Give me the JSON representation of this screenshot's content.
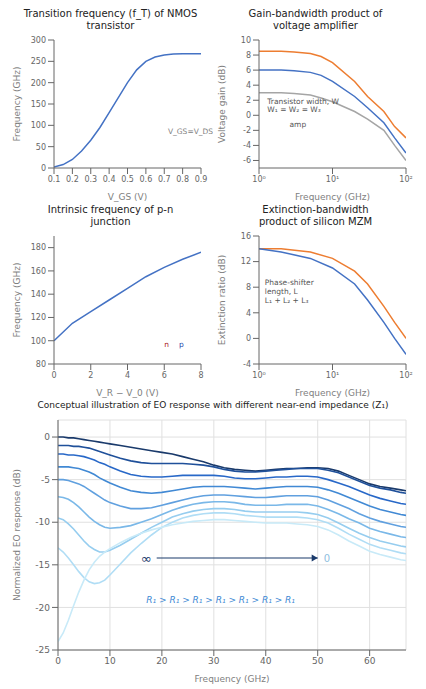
{
  "chart_data": [
    {
      "type": "line",
      "title": "Transition frequency (f_T) of NMOS\ntransistor",
      "xlabel": "V_GS (V)",
      "ylabel": "Frequency (GHz)",
      "x": [
        0.1,
        0.15,
        0.2,
        0.25,
        0.3,
        0.35,
        0.4,
        0.45,
        0.5,
        0.55,
        0.6,
        0.65,
        0.7,
        0.75,
        0.8,
        0.85,
        0.9
      ],
      "series": [
        {
          "color": "#4472c4",
          "values": [
            2,
            8,
            20,
            40,
            65,
            95,
            130,
            165,
            200,
            230,
            250,
            260,
            265,
            267,
            268,
            268,
            268
          ]
        }
      ],
      "xlim": [
        0.1,
        0.9
      ],
      "ylim": [
        0,
        300
      ],
      "xticks": [
        0.1,
        0.2,
        0.3,
        0.4,
        0.5,
        0.6,
        0.7,
        0.8,
        0.9
      ],
      "yticks": [
        0,
        50,
        100,
        150,
        200,
        250,
        300
      ],
      "grid": false,
      "annotations": [
        {
          "text": "V_GS=V_DS",
          "x": 0.72,
          "y": 80,
          "color": "gray"
        }
      ]
    },
    {
      "type": "line",
      "title": "Gain-bandwidth product of\nvoltage amplifier",
      "xlabel": "Frequency (GHz)",
      "ylabel": "Voltage gain (dB)",
      "x": [
        1,
        2,
        3,
        5,
        7,
        10,
        20,
        30,
        50,
        70,
        100
      ],
      "series": [
        {
          "color": "#ed7d31",
          "values": [
            8.5,
            8.5,
            8.4,
            8.2,
            7.8,
            7.0,
            4.5,
            2.5,
            0.5,
            -1.5,
            -3.0
          ]
        },
        {
          "color": "#4472c4",
          "values": [
            6.0,
            6.0,
            5.9,
            5.7,
            5.3,
            4.5,
            2.5,
            1.0,
            -1.0,
            -3.0,
            -5.0
          ]
        },
        {
          "color": "#a5a5a5",
          "values": [
            3.0,
            3.0,
            2.9,
            2.7,
            2.3,
            1.8,
            0.5,
            -0.5,
            -2.0,
            -4.0,
            -6.0
          ]
        }
      ],
      "log": "x",
      "xlim": [
        1,
        100
      ],
      "ylim": [
        -7,
        10
      ],
      "xticks": [
        {
          "value": 1,
          "label": "10⁰"
        },
        {
          "value": 10,
          "label": "10¹"
        },
        {
          "value": 100,
          "label": "10²"
        }
      ],
      "yticks": [
        -6,
        -4,
        -2,
        0,
        2,
        4,
        6,
        8,
        10
      ],
      "grid": false,
      "annotations": [
        {
          "text": "Transistor width, W",
          "x": 1.3,
          "y": 1.5,
          "color": "#555555"
        },
        {
          "text": "W₁ = W₂ = W₃",
          "x": 1.3,
          "y": 0.5,
          "color": "#555555"
        },
        {
          "text": "amp",
          "x": 2.6,
          "y": -1.5,
          "color": "#555555"
        }
      ]
    },
    {
      "type": "line",
      "title": "Intrinsic frequency of p-n\njunction",
      "xlabel": "V_R − V_0 (V)",
      "ylabel": "Frequency (GHz)",
      "x": [
        0,
        1,
        2,
        3,
        4,
        5,
        6,
        7,
        8
      ],
      "series": [
        {
          "color": "#4472c4",
          "values": [
            100,
            115,
            125,
            135,
            145,
            155,
            163,
            170,
            176
          ]
        }
      ],
      "xlim": [
        0,
        8
      ],
      "ylim": [
        80,
        190
      ],
      "xticks": [
        0,
        2,
        4,
        6,
        8
      ],
      "yticks": [
        80,
        100,
        120,
        140,
        160,
        180
      ],
      "grid": false,
      "annotations": [
        {
          "text": "n",
          "x": 6,
          "y": 95,
          "color": "#aa2222"
        },
        {
          "text": "p",
          "x": 6.8,
          "y": 95,
          "color": "#2244aa"
        }
      ]
    },
    {
      "type": "line",
      "title": "Extinction-bandwidth\nproduct of silicon MZM",
      "xlabel": "Frequency (GHz)",
      "ylabel": "Extinction ratio (dB)",
      "x": [
        1,
        2,
        5,
        10,
        20,
        30,
        50,
        70,
        100
      ],
      "series": [
        {
          "color": "#ed7d31",
          "values": [
            14,
            14,
            13.5,
            12.5,
            10.5,
            8.5,
            5.0,
            2.5,
            0.0
          ]
        },
        {
          "color": "#4472c4",
          "values": [
            14,
            13.5,
            12.5,
            11.0,
            8.5,
            6.0,
            2.5,
            0.0,
            -2.5
          ]
        }
      ],
      "log": "x",
      "xlim": [
        1,
        100
      ],
      "ylim": [
        -4,
        16
      ],
      "xticks": [
        {
          "value": 1,
          "label": "10⁰"
        },
        {
          "value": 10,
          "label": "10¹"
        },
        {
          "value": 100,
          "label": "10²"
        }
      ],
      "yticks": [
        -4,
        0,
        4,
        8,
        12,
        16
      ],
      "grid": false,
      "annotations": [
        {
          "text": "Phase-shifter\nlength, L",
          "x": 1.2,
          "y": 7.0,
          "color": "#555555"
        },
        {
          "text": "L₁ + L₂ + L₃",
          "x": 1.2,
          "y": 5.5,
          "color": "#555555"
        }
      ]
    },
    {
      "type": "line",
      "title": "Conceptual illustration of EO response with different near-end impedance (Z₁)",
      "xlabel": "Frequency (GHz)",
      "ylabel": "Normalized EO response (dB)",
      "x": [
        0,
        1,
        2,
        3,
        4,
        5,
        6,
        7,
        8,
        9,
        10,
        12,
        14,
        16,
        18,
        20,
        22,
        24,
        26,
        28,
        30,
        32,
        34,
        36,
        38,
        40,
        42,
        44,
        46,
        48,
        50,
        52,
        54,
        56,
        58,
        60,
        62,
        64,
        66,
        67
      ],
      "series": [
        {
          "color": "#1a3a6b",
          "values": [
            0.0,
            0.0,
            -0.1,
            -0.1,
            -0.2,
            -0.3,
            -0.4,
            -0.5,
            -0.6,
            -0.7,
            -0.8,
            -1.0,
            -1.2,
            -1.4,
            -1.6,
            -1.8,
            -2.0,
            -2.3,
            -2.6,
            -2.9,
            -3.3,
            -3.6,
            -3.8,
            -3.9,
            -4.0,
            -3.9,
            -3.8,
            -3.7,
            -3.7,
            -3.6,
            -3.6,
            -3.7,
            -4.0,
            -4.5,
            -5.0,
            -5.5,
            -5.8,
            -6.0,
            -6.2,
            -6.3
          ]
        },
        {
          "color": "#1f509a",
          "values": [
            -1.0,
            -1.0,
            -1.0,
            -1.1,
            -1.1,
            -1.2,
            -1.3,
            -1.5,
            -1.7,
            -1.9,
            -2.1,
            -2.5,
            -2.8,
            -3.0,
            -3.1,
            -3.1,
            -3.1,
            -3.1,
            -3.2,
            -3.3,
            -3.5,
            -3.8,
            -4.0,
            -4.1,
            -4.1,
            -4.0,
            -3.9,
            -3.8,
            -3.7,
            -3.7,
            -3.7,
            -3.9,
            -4.2,
            -4.7,
            -5.2,
            -5.7,
            -6.0,
            -6.2,
            -6.5,
            -6.6
          ]
        },
        {
          "color": "#2868c8",
          "values": [
            -2.0,
            -2.0,
            -2.1,
            -2.1,
            -2.2,
            -2.3,
            -2.5,
            -2.7,
            -3.0,
            -3.2,
            -3.5,
            -4.0,
            -4.4,
            -4.6,
            -4.7,
            -4.7,
            -4.6,
            -4.5,
            -4.5,
            -4.5,
            -4.5,
            -4.6,
            -4.8,
            -4.9,
            -4.9,
            -4.8,
            -4.7,
            -4.7,
            -4.6,
            -4.6,
            -4.7,
            -5.0,
            -5.4,
            -5.8,
            -6.3,
            -6.8,
            -7.2,
            -7.5,
            -7.8,
            -7.9
          ]
        },
        {
          "color": "#4189d4",
          "values": [
            -3.5,
            -3.5,
            -3.5,
            -3.6,
            -3.7,
            -3.9,
            -4.1,
            -4.4,
            -4.8,
            -5.1,
            -5.4,
            -5.9,
            -6.3,
            -6.5,
            -6.6,
            -6.5,
            -6.3,
            -6.1,
            -5.9,
            -5.8,
            -5.8,
            -5.8,
            -5.9,
            -6.0,
            -6.1,
            -6.0,
            -5.9,
            -5.8,
            -5.8,
            -5.8,
            -5.9,
            -6.2,
            -6.6,
            -7.1,
            -7.6,
            -8.1,
            -8.5,
            -8.8,
            -9.1,
            -9.2
          ]
        },
        {
          "color": "#60a0df",
          "values": [
            -5.0,
            -5.0,
            -5.1,
            -5.3,
            -5.5,
            -5.8,
            -6.2,
            -6.6,
            -7.0,
            -7.4,
            -7.7,
            -8.1,
            -8.4,
            -8.4,
            -8.3,
            -8.0,
            -7.7,
            -7.4,
            -7.1,
            -6.9,
            -6.8,
            -6.8,
            -6.9,
            -7.0,
            -7.1,
            -7.1,
            -7.0,
            -6.9,
            -6.9,
            -6.9,
            -7.0,
            -7.4,
            -7.9,
            -8.4,
            -9.0,
            -9.5,
            -9.9,
            -10.2,
            -10.5,
            -10.6
          ]
        },
        {
          "color": "#7ab8e8",
          "values": [
            -7.0,
            -7.1,
            -7.3,
            -7.7,
            -8.2,
            -8.8,
            -9.4,
            -9.9,
            -10.3,
            -10.6,
            -10.7,
            -10.6,
            -10.4,
            -10.0,
            -9.6,
            -9.1,
            -8.6,
            -8.2,
            -7.9,
            -7.7,
            -7.6,
            -7.6,
            -7.7,
            -7.9,
            -8.0,
            -8.0,
            -8.0,
            -7.9,
            -7.9,
            -7.9,
            -8.1,
            -8.5,
            -9.0,
            -9.6,
            -10.1,
            -10.7,
            -11.1,
            -11.4,
            -11.7,
            -11.8
          ]
        },
        {
          "color": "#96cdef",
          "values": [
            -9.5,
            -9.7,
            -10.2,
            -10.8,
            -11.5,
            -12.2,
            -12.8,
            -13.2,
            -13.5,
            -13.5,
            -13.3,
            -12.7,
            -12.0,
            -11.3,
            -10.6,
            -10.0,
            -9.4,
            -9.0,
            -8.7,
            -8.5,
            -8.4,
            -8.4,
            -8.5,
            -8.7,
            -8.8,
            -8.8,
            -8.8,
            -8.8,
            -8.8,
            -8.9,
            -9.1,
            -9.5,
            -10.1,
            -10.7,
            -11.3,
            -11.8,
            -12.2,
            -12.5,
            -12.8,
            -12.9
          ]
        },
        {
          "color": "#b0ddf5",
          "values": [
            -13.0,
            -13.5,
            -14.2,
            -15.0,
            -15.8,
            -16.5,
            -17.0,
            -17.2,
            -17.1,
            -16.8,
            -16.2,
            -14.9,
            -13.6,
            -12.5,
            -11.5,
            -10.6,
            -10.0,
            -9.5,
            -9.2,
            -9.0,
            -8.9,
            -8.9,
            -9.0,
            -9.2,
            -9.3,
            -9.4,
            -9.4,
            -9.4,
            -9.4,
            -9.5,
            -9.7,
            -10.1,
            -10.7,
            -11.4,
            -12.0,
            -12.6,
            -13.0,
            -13.3,
            -13.6,
            -13.7
          ]
        },
        {
          "color": "#c8eaf8",
          "values": [
            -24.0,
            -23.0,
            -21.5,
            -19.8,
            -18.2,
            -16.8,
            -15.6,
            -14.7,
            -14.0,
            -13.5,
            -13.1,
            -12.4,
            -11.8,
            -11.3,
            -10.9,
            -10.6,
            -10.3,
            -10.1,
            -9.9,
            -9.8,
            -9.7,
            -9.7,
            -9.8,
            -9.9,
            -10.0,
            -10.1,
            -10.1,
            -10.1,
            -10.2,
            -10.3,
            -10.5,
            -10.9,
            -11.5,
            -12.2,
            -12.8,
            -13.4,
            -13.8,
            -14.1,
            -14.4,
            -14.5
          ]
        }
      ],
      "xlim": [
        0,
        67
      ],
      "ylim": [
        -25,
        2
      ],
      "xticks": [
        0,
        10,
        20,
        30,
        40,
        50,
        60
      ],
      "yticks": [
        0,
        -5,
        -10,
        -15,
        -20,
        -25
      ],
      "grid": true,
      "arrow": {
        "x_start": 19,
        "x_end": 50,
        "y": -14.2,
        "color": "#1a3a6b",
        "start_label": "∞",
        "end_label": "0",
        "end_label_color": "#90c0e0"
      },
      "annotations": [
        {
          "text": "R₁ > R₁ > R₁ > R₁ > R₁ > R₁ > R₁",
          "x": 17,
          "y": -19.5,
          "color": "#4189d4"
        }
      ]
    }
  ]
}
